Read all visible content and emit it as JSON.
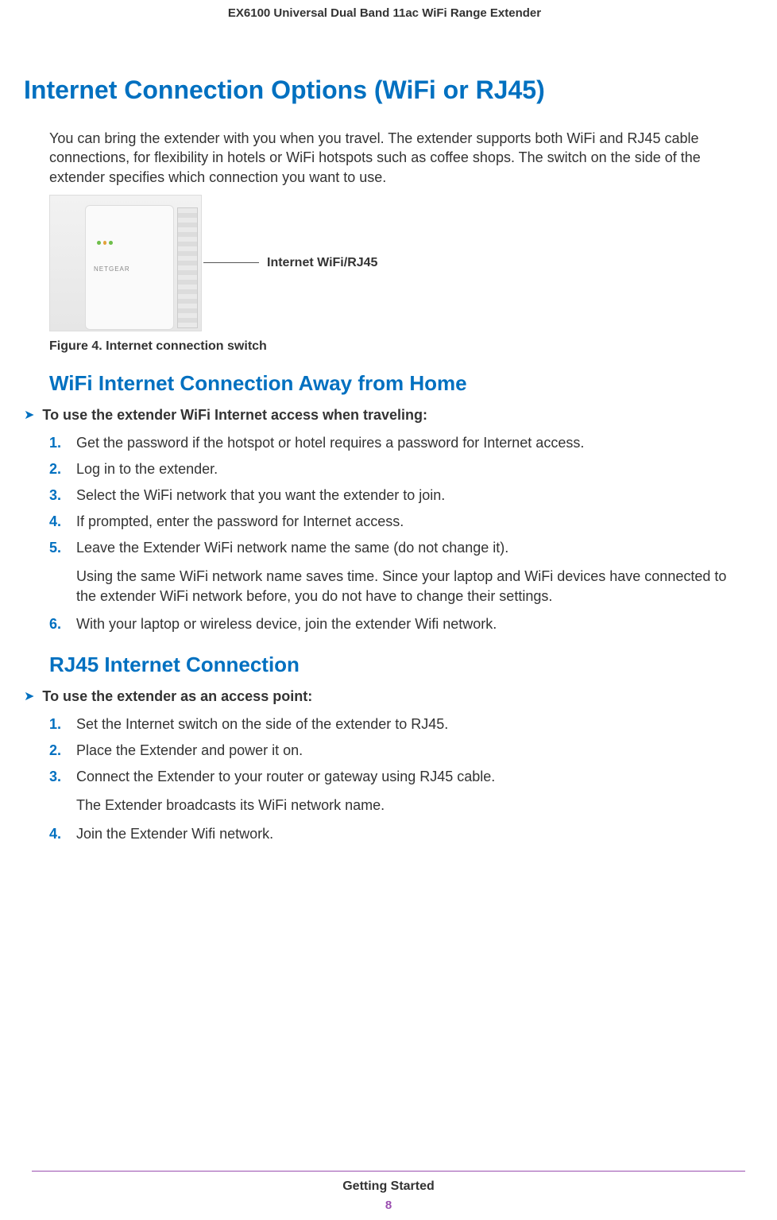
{
  "colors": {
    "heading_blue": "#0070c0",
    "footer_purple": "#9b4fb0",
    "body_text": "#333333",
    "led_green": "#6fbf4b",
    "led_amber": "#e3a23c"
  },
  "header": {
    "running_title": "EX6100 Universal Dual Band 11ac WiFi Range Extender"
  },
  "section": {
    "title": "Internet Connection Options (WiFi or RJ45)",
    "intro": "You can bring the extender with you when you travel. The extender supports both WiFi and RJ45 cable connections, for flexibility in hotels or WiFi hotspots such as coffee shops. The switch on the side of the extender specifies which connection you want to use.",
    "figure": {
      "callout": "Internet WiFi/RJ45",
      "caption": "Figure 4. Internet connection switch",
      "device_brand": "NETGEAR"
    }
  },
  "wifi": {
    "heading": "WiFi Internet Connection Away from Home",
    "proc_title": "To use the extender WiFi Internet access when traveling:",
    "steps": [
      "Get the password if the hotspot or hotel requires a password for Internet access.",
      "Log in to the extender.",
      "Select the WiFi network that you want the extender to join.",
      "If prompted, enter the password for Internet access.",
      "Leave the Extender WiFi network name the same (do not change it).",
      "With your laptop or wireless device, join the extender Wifi network."
    ],
    "step5_note": "Using the same WiFi network name saves time. Since your laptop and WiFi devices have connected to the extender WiFi network before, you do not have to change their settings."
  },
  "rj45": {
    "heading": "RJ45 Internet Connection",
    "proc_title": "To use the extender as an access point:",
    "steps": [
      "Set the Internet switch on the side of the extender to RJ45.",
      "Place the Extender and power it on.",
      "Connect the Extender to your router or gateway using RJ45 cable.",
      "Join the Extender Wifi network."
    ],
    "step3_note": "The Extender broadcasts its WiFi network name."
  },
  "footer": {
    "chapter": "Getting Started",
    "page": "8"
  }
}
